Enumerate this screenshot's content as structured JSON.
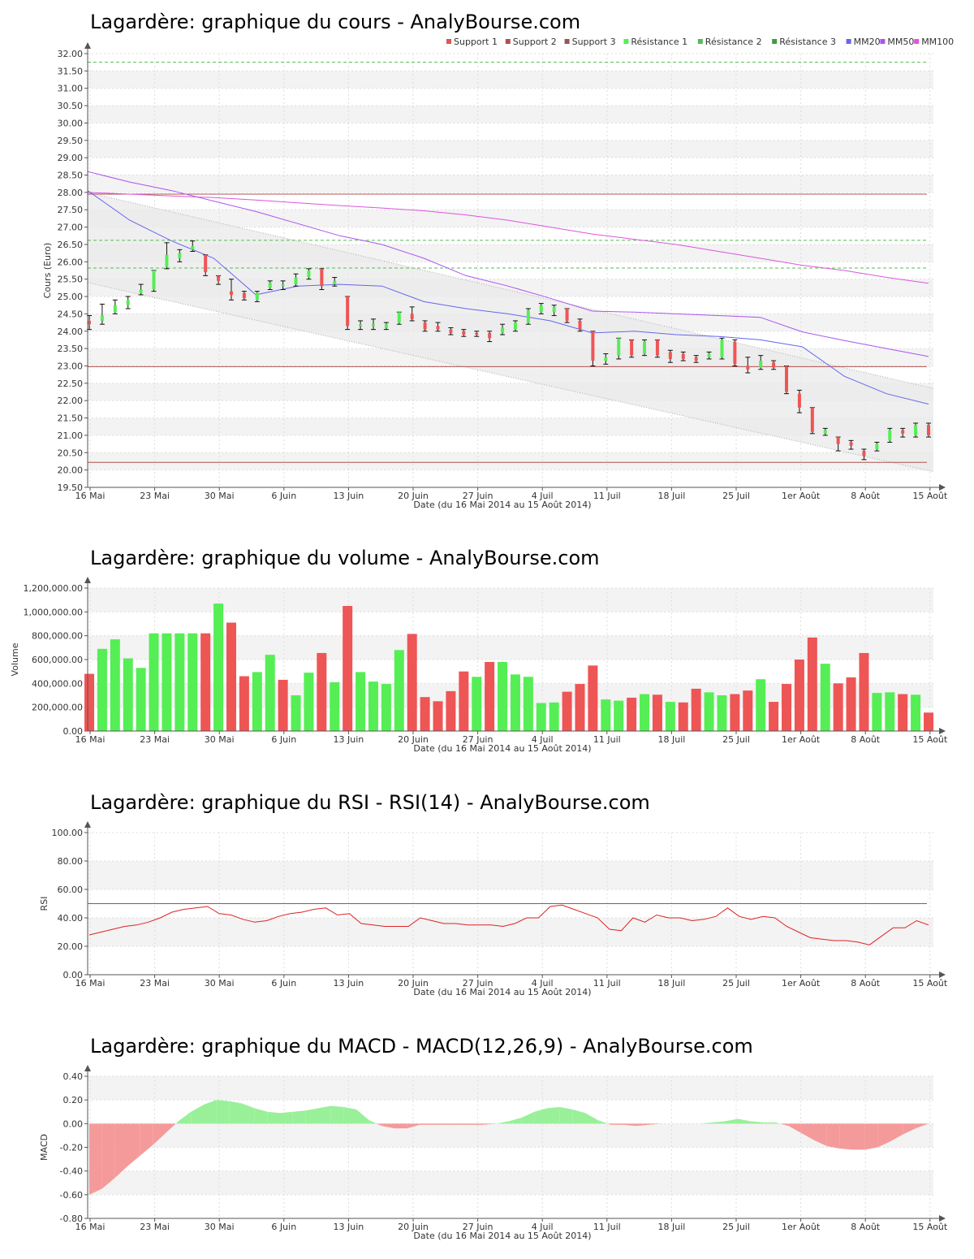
{
  "colors": {
    "up": "#55ee55",
    "down": "#ee5555",
    "support": "#b05050",
    "resistance": "#55bb55",
    "mm20": "#6666ee",
    "mm50": "#aa55ee",
    "mm100": "#dd55dd",
    "rsi": "#dd2222",
    "macd_pos": "#99f099",
    "macd_neg": "#f59a9a",
    "band_alt": "#f3f3f3",
    "channel": "#e9e9e9"
  },
  "x_axis": {
    "ticks": [
      "16 Mai",
      "23 Mai",
      "30 Mai",
      "6 Juin",
      "13 Juin",
      "20 Juin",
      "27 Juin",
      "4 Juil",
      "11 Juil",
      "18 Juil",
      "25 Juil",
      "1er Août",
      "8 Août",
      "15 Août"
    ],
    "label": "Date (du 16 Mai 2014 au 15 Août 2014)"
  },
  "price_chart": {
    "title": "Lagardère: graphique du cours - AnalyBourse.com",
    "ylabel": "Cours (Euro)",
    "ylim": [
      19.5,
      32.0
    ],
    "yticks": [
      "19.50",
      "20.00",
      "20.50",
      "21.00",
      "21.50",
      "22.00",
      "22.50",
      "23.00",
      "23.50",
      "24.00",
      "24.50",
      "25.00",
      "25.50",
      "26.00",
      "26.50",
      "27.00",
      "27.50",
      "28.00",
      "28.50",
      "29.00",
      "29.50",
      "30.00",
      "30.50",
      "31.00",
      "31.50",
      "32.00"
    ],
    "legend": [
      {
        "label": "Support 1",
        "color": "#dd5555"
      },
      {
        "label": "Support 2",
        "color": "#b05050"
      },
      {
        "label": "Support 3",
        "color": "#995555"
      },
      {
        "label": "Résistance 1",
        "color": "#55ee55"
      },
      {
        "label": "Résistance 2",
        "color": "#55bb55"
      },
      {
        "label": "Résistance 3",
        "color": "#449944"
      },
      {
        "label": "MM20",
        "color": "#6666ee"
      },
      {
        "label": "MM50",
        "color": "#aa55ee"
      },
      {
        "label": "MM100",
        "color": "#dd55dd"
      }
    ],
    "supports": [
      22.98,
      20.22,
      27.95
    ],
    "resistances": [
      25.82,
      26.62,
      31.75
    ],
    "channel": {
      "upper": [
        28.0,
        22.35
      ],
      "lower": [
        25.4,
        19.95
      ]
    },
    "mm20": [
      28.05,
      27.2,
      26.6,
      26.1,
      25.05,
      25.3,
      25.35,
      25.3,
      24.85,
      24.65,
      24.5,
      24.3,
      23.95,
      24.0,
      23.9,
      23.85,
      23.75,
      23.55,
      22.7,
      22.2,
      21.9
    ],
    "mm50": [
      28.6,
      28.3,
      28.05,
      27.75,
      27.45,
      27.1,
      26.75,
      26.5,
      26.1,
      25.6,
      25.3,
      24.95,
      24.58,
      24.55,
      24.5,
      24.45,
      24.4,
      23.98,
      23.73,
      23.5,
      23.27
    ],
    "mm100": [
      28.0,
      27.95,
      27.9,
      27.85,
      27.78,
      27.7,
      27.62,
      27.55,
      27.47,
      27.35,
      27.2,
      27.0,
      26.8,
      26.65,
      26.5,
      26.3,
      26.1,
      25.9,
      25.75,
      25.55,
      25.38
    ],
    "candles": [
      {
        "o": 24.3,
        "c": 24.2,
        "h": 24.45,
        "l": 24.05
      },
      {
        "o": 24.3,
        "c": 24.45,
        "h": 24.78,
        "l": 24.2
      },
      {
        "o": 24.55,
        "c": 24.75,
        "h": 24.9,
        "l": 24.5
      },
      {
        "o": 24.75,
        "c": 24.9,
        "h": 25.0,
        "l": 24.65
      },
      {
        "o": 25.1,
        "c": 25.2,
        "h": 25.35,
        "l": 25.05
      },
      {
        "o": 25.2,
        "c": 25.75,
        "h": 25.75,
        "l": 25.15
      },
      {
        "o": 25.85,
        "c": 26.2,
        "h": 26.55,
        "l": 25.8
      },
      {
        "o": 26.1,
        "c": 26.25,
        "h": 26.35,
        "l": 26.0
      },
      {
        "o": 26.35,
        "c": 26.45,
        "h": 26.6,
        "l": 26.3
      },
      {
        "o": 26.2,
        "c": 25.7,
        "h": 26.2,
        "l": 25.6
      },
      {
        "o": 25.6,
        "c": 25.45,
        "h": 25.6,
        "l": 25.35
      },
      {
        "o": 25.15,
        "c": 25.05,
        "h": 25.5,
        "l": 24.9
      },
      {
        "o": 25.1,
        "c": 24.95,
        "h": 25.15,
        "l": 24.9
      },
      {
        "o": 24.9,
        "c": 25.1,
        "h": 25.15,
        "l": 24.85
      },
      {
        "o": 25.25,
        "c": 25.4,
        "h": 25.45,
        "l": 25.2
      },
      {
        "o": 25.3,
        "c": 25.35,
        "h": 25.45,
        "l": 25.2
      },
      {
        "o": 25.35,
        "c": 25.55,
        "h": 25.65,
        "l": 25.3
      },
      {
        "o": 25.55,
        "c": 25.75,
        "h": 25.8,
        "l": 25.5
      },
      {
        "o": 25.8,
        "c": 25.3,
        "h": 25.8,
        "l": 25.2
      },
      {
        "o": 25.35,
        "c": 25.45,
        "h": 25.55,
        "l": 25.3
      },
      {
        "o": 25.0,
        "c": 24.15,
        "h": 25.0,
        "l": 24.05
      },
      {
        "o": 24.15,
        "c": 24.2,
        "h": 24.3,
        "l": 24.05
      },
      {
        "o": 24.15,
        "c": 24.2,
        "h": 24.35,
        "l": 24.05
      },
      {
        "o": 24.1,
        "c": 24.2,
        "h": 24.25,
        "l": 24.05
      },
      {
        "o": 24.25,
        "c": 24.55,
        "h": 24.55,
        "l": 24.2
      },
      {
        "o": 24.5,
        "c": 24.35,
        "h": 24.7,
        "l": 24.3
      },
      {
        "o": 24.25,
        "c": 24.05,
        "h": 24.3,
        "l": 24.0
      },
      {
        "o": 24.15,
        "c": 24.05,
        "h": 24.25,
        "l": 24.0
      },
      {
        "o": 24.05,
        "c": 23.95,
        "h": 24.1,
        "l": 23.9
      },
      {
        "o": 24.0,
        "c": 23.9,
        "h": 24.05,
        "l": 23.85
      },
      {
        "o": 23.95,
        "c": 23.9,
        "h": 24.0,
        "l": 23.85
      },
      {
        "o": 23.95,
        "c": 23.8,
        "h": 24.0,
        "l": 23.7
      },
      {
        "o": 23.95,
        "c": 24.1,
        "h": 24.2,
        "l": 23.9
      },
      {
        "o": 24.05,
        "c": 24.25,
        "h": 24.3,
        "l": 24.0
      },
      {
        "o": 24.25,
        "c": 24.6,
        "h": 24.65,
        "l": 24.2
      },
      {
        "o": 24.55,
        "c": 24.75,
        "h": 24.8,
        "l": 24.5
      },
      {
        "o": 24.55,
        "c": 24.7,
        "h": 24.75,
        "l": 24.45
      },
      {
        "o": 24.65,
        "c": 24.3,
        "h": 24.65,
        "l": 24.25
      },
      {
        "o": 24.3,
        "c": 24.05,
        "h": 24.35,
        "l": 24.0
      },
      {
        "o": 24.0,
        "c": 23.15,
        "h": 24.0,
        "l": 23.0
      },
      {
        "o": 23.15,
        "c": 23.25,
        "h": 23.35,
        "l": 23.05
      },
      {
        "o": 23.3,
        "c": 23.8,
        "h": 23.8,
        "l": 23.2
      },
      {
        "o": 23.75,
        "c": 23.3,
        "h": 23.75,
        "l": 23.25
      },
      {
        "o": 23.35,
        "c": 23.7,
        "h": 23.75,
        "l": 23.3
      },
      {
        "o": 23.75,
        "c": 23.3,
        "h": 23.75,
        "l": 23.25
      },
      {
        "o": 23.4,
        "c": 23.2,
        "h": 23.45,
        "l": 23.1
      },
      {
        "o": 23.35,
        "c": 23.2,
        "h": 23.4,
        "l": 23.15
      },
      {
        "o": 23.25,
        "c": 23.15,
        "h": 23.3,
        "l": 23.1
      },
      {
        "o": 23.25,
        "c": 23.35,
        "h": 23.4,
        "l": 23.2
      },
      {
        "o": 23.25,
        "c": 23.75,
        "h": 23.8,
        "l": 23.2
      },
      {
        "o": 23.7,
        "c": 23.05,
        "h": 23.75,
        "l": 23.0
      },
      {
        "o": 23.0,
        "c": 22.9,
        "h": 23.25,
        "l": 22.8
      },
      {
        "o": 22.95,
        "c": 23.15,
        "h": 23.3,
        "l": 22.9
      },
      {
        "o": 23.1,
        "c": 22.95,
        "h": 23.15,
        "l": 22.9
      },
      {
        "o": 23.0,
        "c": 22.25,
        "h": 23.0,
        "l": 22.2
      },
      {
        "o": 22.2,
        "c": 21.8,
        "h": 22.3,
        "l": 21.65
      },
      {
        "o": 21.8,
        "c": 21.1,
        "h": 21.8,
        "l": 21.05
      },
      {
        "o": 21.05,
        "c": 21.15,
        "h": 21.2,
        "l": 21.0
      },
      {
        "o": 20.95,
        "c": 20.75,
        "h": 20.95,
        "l": 20.55
      },
      {
        "o": 20.8,
        "c": 20.7,
        "h": 20.85,
        "l": 20.6
      },
      {
        "o": 20.55,
        "c": 20.4,
        "h": 20.6,
        "l": 20.3
      },
      {
        "o": 20.6,
        "c": 20.75,
        "h": 20.8,
        "l": 20.55
      },
      {
        "o": 20.85,
        "c": 21.15,
        "h": 21.2,
        "l": 20.8
      },
      {
        "o": 21.15,
        "c": 21.05,
        "h": 21.2,
        "l": 20.95
      },
      {
        "o": 21.0,
        "c": 21.3,
        "h": 21.35,
        "l": 20.95
      },
      {
        "o": 21.3,
        "c": 21.0,
        "h": 21.35,
        "l": 20.95
      }
    ]
  },
  "volume_chart": {
    "title": "Lagardère: graphique du volume - AnalyBourse.com",
    "ylabel": "Volume",
    "ylim": [
      0,
      1200000
    ],
    "yticks": [
      "0.00",
      "200,000.00",
      "400,000.00",
      "600,000.00",
      "800,000.00",
      "1,000,000.00",
      "1,200,000.00"
    ],
    "values": [
      480000,
      690000,
      770000,
      610000,
      530000,
      820000,
      820000,
      820000,
      820000,
      820000,
      1070000,
      910000,
      460000,
      495000,
      640000,
      430000,
      300000,
      490000,
      655000,
      410000,
      1050000,
      495000,
      415000,
      395000,
      680000,
      815000,
      285000,
      250000,
      335000,
      500000,
      455000,
      580000,
      580000,
      475000,
      455000,
      235000,
      240000,
      330000,
      395000,
      550000,
      265000,
      255000,
      280000,
      310000,
      305000,
      245000,
      240000,
      355000,
      325000,
      300000,
      310000,
      340000,
      435000,
      245000,
      395000,
      600000,
      785000,
      565000,
      400000,
      450000,
      655000,
      320000,
      325000,
      310000,
      305000,
      155000
    ],
    "up": [
      false,
      true,
      true,
      true,
      true,
      true,
      true,
      true,
      true,
      false,
      true,
      false,
      false,
      true,
      true,
      false,
      true,
      true,
      false,
      true,
      false,
      true,
      true,
      true,
      true,
      false,
      false,
      false,
      false,
      false,
      true,
      false,
      true,
      true,
      true,
      true,
      true,
      false,
      false,
      false,
      true,
      true,
      false,
      true,
      false,
      true,
      false,
      false,
      true,
      true,
      false,
      false,
      true,
      false,
      false,
      false,
      false,
      true,
      false,
      false,
      false,
      true,
      true,
      false,
      true,
      false
    ]
  },
  "rsi_chart": {
    "title": "Lagardère: graphique du RSI - RSI(14) - AnalyBourse.com",
    "ylabel": "RSI",
    "ylim": [
      0,
      100
    ],
    "yticks": [
      "0.00",
      "20.00",
      "40.00",
      "60.00",
      "80.00",
      "100.00"
    ],
    "reference": 50,
    "values": [
      28,
      30,
      32,
      34,
      35,
      37,
      40,
      44,
      46,
      47,
      48,
      43,
      42,
      39,
      37,
      38,
      41,
      43,
      44,
      46,
      47,
      42,
      43,
      36,
      35,
      34,
      34,
      34,
      40,
      38,
      36,
      36,
      35,
      35,
      35,
      34,
      36,
      40,
      40,
      48,
      49,
      46,
      43,
      40,
      32,
      31,
      40,
      37,
      42,
      40,
      40,
      38,
      39,
      41,
      47,
      41,
      39,
      41,
      40,
      34,
      30,
      26,
      25,
      24,
      24,
      23,
      21,
      27,
      33,
      33,
      38,
      35
    ]
  },
  "macd_chart": {
    "title": "Lagardère: graphique du MACD - MACD(12,26,9) - AnalyBourse.com",
    "ylabel": "MACD",
    "ylim": [
      -0.8,
      0.4
    ],
    "yticks": [
      "-0.80",
      "-0.60",
      "-0.40",
      "-0.20",
      "0.00",
      "0.20",
      "0.40"
    ],
    "values": [
      -0.6,
      -0.55,
      -0.46,
      -0.36,
      -0.27,
      -0.18,
      -0.08,
      0.02,
      0.1,
      0.16,
      0.2,
      0.19,
      0.17,
      0.13,
      0.1,
      0.09,
      0.1,
      0.11,
      0.13,
      0.15,
      0.14,
      0.12,
      0.03,
      -0.02,
      -0.04,
      -0.04,
      -0.01,
      -0.01,
      -0.01,
      -0.01,
      -0.01,
      -0.01,
      0.0,
      0.02,
      0.05,
      0.1,
      0.13,
      0.14,
      0.12,
      0.09,
      0.03,
      -0.01,
      -0.01,
      -0.02,
      -0.01,
      0.0,
      0.0,
      0.0,
      0.0,
      0.01,
      0.02,
      0.04,
      0.02,
      0.01,
      0.01,
      -0.02,
      -0.08,
      -0.14,
      -0.19,
      -0.21,
      -0.22,
      -0.22,
      -0.2,
      -0.15,
      -0.09,
      -0.04,
      0.0
    ]
  }
}
